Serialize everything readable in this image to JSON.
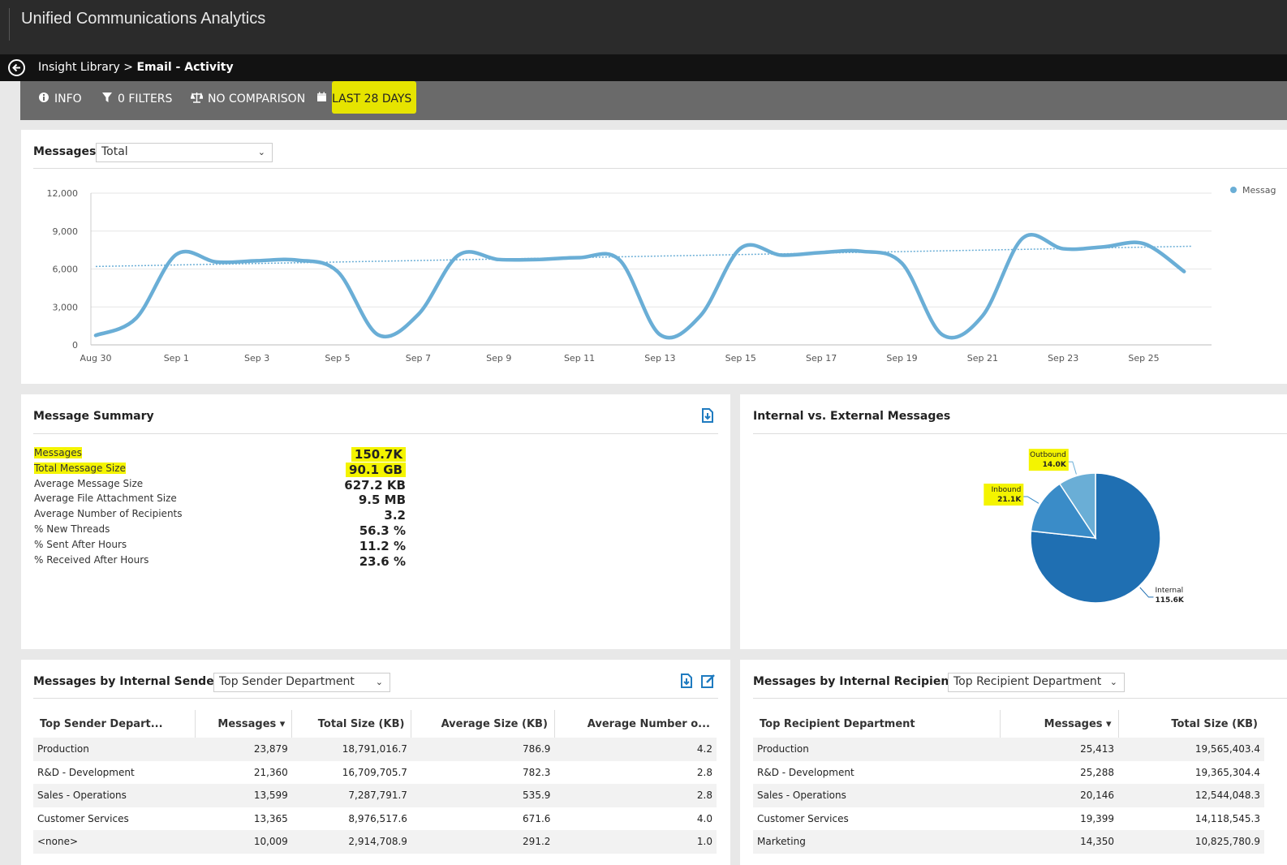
{
  "app": {
    "title": "Unified Communications Analytics"
  },
  "breadcrumb": {
    "parent": "Insight Library",
    "separator": ">",
    "current": "Email - Activity"
  },
  "toolbar": {
    "info": "INFO",
    "filters": "0 FILTERS",
    "comparison": "NO COMPARISON",
    "range": "LAST 28 DAYS"
  },
  "messages_chart": {
    "title": "Messages",
    "select_value": "Total",
    "legend": "Messag",
    "accent": "#6aaed6"
  },
  "chart_data": [
    {
      "type": "line",
      "title": "Messages",
      "x": [
        "Aug 30",
        "Aug 31",
        "Sep 1",
        "Sep 2",
        "Sep 3",
        "Sep 4",
        "Sep 5",
        "Sep 6",
        "Sep 7",
        "Sep 8",
        "Sep 9",
        "Sep 10",
        "Sep 11",
        "Sep 12",
        "Sep 13",
        "Sep 14",
        "Sep 15",
        "Sep 16",
        "Sep 17",
        "Sep 18",
        "Sep 19",
        "Sep 20",
        "Sep 21",
        "Sep 22",
        "Sep 23",
        "Sep 24",
        "Sep 25",
        "Sep 26"
      ],
      "x_ticks": [
        "Aug 30",
        "Sep 1",
        "Sep 3",
        "Sep 5",
        "Sep 7",
        "Sep 9",
        "Sep 11",
        "Sep 13",
        "Sep 15",
        "Sep 17",
        "Sep 19",
        "Sep 21",
        "Sep 23",
        "Sep 25"
      ],
      "series": [
        {
          "name": "Messag",
          "values": [
            750,
            2100,
            7150,
            6550,
            6650,
            6700,
            5800,
            800,
            2400,
            7100,
            6750,
            6750,
            6900,
            6700,
            800,
            2300,
            7650,
            7100,
            7300,
            7400,
            6450,
            800,
            2300,
            8450,
            7600,
            7750,
            8000,
            5800
          ]
        }
      ],
      "trend": {
        "start": 6200,
        "end": 7800
      },
      "ylim": [
        0,
        12000
      ],
      "y_ticks": [
        0,
        3000,
        6000,
        9000,
        12000
      ],
      "y_tick_labels": [
        "0",
        "3,000",
        "6,000",
        "9,000",
        "12,000"
      ],
      "grid": true,
      "legend_position": "top-right"
    },
    {
      "type": "pie",
      "title": "Internal vs. External Messages",
      "slices": [
        {
          "label": "Internal",
          "value_label": "115.6K",
          "value": 115.6,
          "color": "#1f6fb2"
        },
        {
          "label": "Inbound",
          "value_label": "21.1K",
          "value": 21.1,
          "color": "#3a8cc8"
        },
        {
          "label": "Outbound",
          "value_label": "14.0K",
          "value": 14.0,
          "color": "#6aaed6"
        }
      ]
    }
  ],
  "summary": {
    "title": "Message Summary",
    "rows": [
      {
        "label": "Messages",
        "value": "150.7K"
      },
      {
        "label": "Total Message Size",
        "value": "90.1 GB"
      },
      {
        "label": "Average Message Size",
        "value": "627.2 KB"
      },
      {
        "label": "Average File Attachment Size",
        "value": "9.5 MB"
      },
      {
        "label": "Average Number of Recipients",
        "value": "3.2"
      },
      {
        "label": "% New Threads",
        "value": "56.3 %"
      },
      {
        "label": "% Sent After Hours",
        "value": "11.2 %"
      },
      {
        "label": "% Received After Hours",
        "value": "23.6 %"
      }
    ]
  },
  "pie": {
    "title": "Internal vs. External Messages"
  },
  "senders": {
    "title": "Messages by Internal Senders",
    "select_value": "Top Sender Department",
    "headers": [
      "Top Sender Depart...",
      "Messages ▾",
      "Total Size (KB)",
      "Average Size (KB)",
      "Average Number o..."
    ],
    "rows": [
      [
        "Production",
        "23,879",
        "18,791,016.7",
        "786.9",
        "4.2"
      ],
      [
        "R&D - Development",
        "21,360",
        "16,709,705.7",
        "782.3",
        "2.8"
      ],
      [
        "Sales - Operations",
        "13,599",
        "7,287,791.7",
        "535.9",
        "2.8"
      ],
      [
        "Customer Services",
        "13,365",
        "8,976,517.6",
        "671.6",
        "4.0"
      ],
      [
        "<none>",
        "10,009",
        "2,914,708.9",
        "291.2",
        "1.0"
      ]
    ]
  },
  "recipients": {
    "title": "Messages by Internal Recipients",
    "select_value": "Top Recipient Department",
    "headers": [
      "Top Recipient Department",
      "Messages ▾",
      "Total Size (KB)"
    ],
    "rows": [
      [
        "Production",
        "25,413",
        "19,565,403.4"
      ],
      [
        "R&D - Development",
        "25,288",
        "19,365,304.4"
      ],
      [
        "Sales - Operations",
        "20,146",
        "12,544,048.3"
      ],
      [
        "Customer Services",
        "19,399",
        "14,118,545.3"
      ],
      [
        "Marketing",
        "14,350",
        "10,825,780.9"
      ]
    ]
  }
}
